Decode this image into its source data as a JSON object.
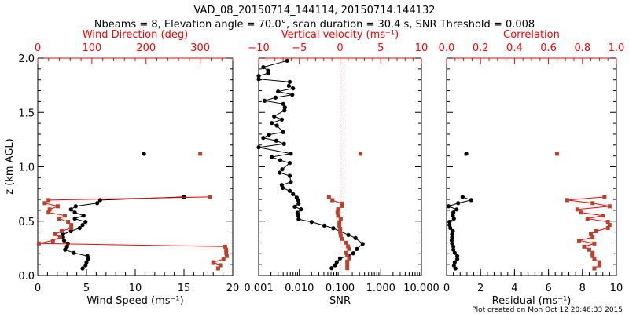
{
  "title": "VAD_08_20150714_144114, 20150714.144132",
  "subtitle": "Nbeams = 8, Elevation angle = 70.0°, scan duration = 30.4 s, SNR Threshold = 0.008",
  "footer": "Plot created on Mon Oct 12 20:46:33 2015",
  "colors": {
    "series_black": "#000000",
    "series_red_line": "#ff0000",
    "series_red_marker": "#b5432f",
    "axis_red": "#ff0000"
  },
  "chart_data": [
    {
      "type": "line",
      "ylabel": "z (km AGL)",
      "ylim": [
        0,
        2
      ],
      "yticks": [
        "0.0",
        "0.5",
        "1.0",
        "1.5",
        "2.0"
      ],
      "xlabel": "Wind Speed (ms⁻¹)",
      "xlim": [
        0,
        20
      ],
      "xticks": [
        "0",
        "5",
        "10",
        "15",
        "20"
      ],
      "top_xlabel": "Wind Direction (deg)",
      "top_xlim": [
        0,
        360
      ],
      "top_xticks": [
        "0",
        "100",
        "200",
        "300"
      ],
      "series": [
        {
          "name": "Wind Speed",
          "axis": "bottom",
          "color": "black",
          "z": [
            0.065,
            0.094,
            0.122,
            0.151,
            0.179,
            0.208,
            0.237,
            0.265,
            0.294,
            0.322,
            0.351,
            0.38,
            0.408,
            0.437,
            0.465,
            0.494,
            0.523,
            0.551,
            0.58,
            0.608,
            0.637,
            0.666,
            0.694,
            0.723
          ],
          "values": [
            4.6,
            4.9,
            5.0,
            5.2,
            5.1,
            3.7,
            2.8,
            3.0,
            3.1,
            2.7,
            2.6,
            2.6,
            3.4,
            4.3,
            4.6,
            4.9,
            3.8,
            4.7,
            3.8,
            3.4,
            3.9,
            6.1,
            6.4,
            15.0
          ],
          "isolated": {
            "z": 1.12,
            "value": 10.9
          }
        },
        {
          "name": "Wind Direction",
          "axis": "top",
          "color": "red",
          "z": [
            0.065,
            0.094,
            0.122,
            0.151,
            0.179,
            0.208,
            0.237,
            0.265,
            0.294,
            0.322,
            0.351,
            0.38,
            0.408,
            0.437,
            0.465,
            0.494,
            0.523,
            0.551,
            0.58,
            0.608,
            0.637,
            0.666,
            0.694,
            0.723
          ],
          "values": [
            333,
            337,
            324,
            343,
            349,
            348,
            348,
            346,
            2,
            28,
            41,
            32,
            44,
            62,
            62,
            56,
            40,
            50,
            20,
            22,
            37,
            13,
            20,
            318
          ],
          "isolated": {
            "z": 1.12,
            "value": 300
          }
        }
      ]
    },
    {
      "type": "line",
      "ylim": [
        0,
        2
      ],
      "xlabel": "SNR",
      "xscale": "log",
      "xlim": [
        0.001,
        10
      ],
      "xticks": [
        "0.001",
        "0.010",
        "0.100",
        "1.000",
        "10.000"
      ],
      "top_xlabel": "Vertical velocity (ms⁻¹)",
      "top_xlim": [
        -10,
        10
      ],
      "top_xticks": [
        "−10",
        "−5",
        "0",
        "5",
        "10"
      ],
      "reference_line": {
        "axis": "top",
        "value": 0,
        "style": "dotted"
      },
      "series": [
        {
          "name": "SNR",
          "axis": "bottom",
          "color": "black",
          "z": [
            1.976,
            1.916,
            1.884,
            1.861,
            1.836,
            1.807,
            1.781,
            1.745,
            1.721,
            1.692,
            1.663,
            1.637,
            1.608,
            1.579,
            1.547,
            1.518,
            1.464,
            1.435,
            1.403,
            1.379,
            1.319,
            1.295,
            1.266,
            1.24,
            1.211,
            1.179,
            1.121,
            1.09,
            1.061,
            1.035,
            0.977,
            0.946,
            0.917,
            0.861,
            0.832,
            0.806,
            0.778,
            0.749,
            0.717,
            0.693,
            0.662,
            0.633,
            0.609,
            0.578,
            0.549,
            0.518,
            0.493,
            0.46,
            0.435,
            0.373,
            0.344,
            0.291,
            0.243,
            0.204,
            0.181,
            0.157,
            0.123,
            0.094,
            0.067
          ],
          "values": [
            0.005,
            0.0013,
            0.0017,
            0.0017,
            0.001,
            0.001,
            0.0058,
            0.0055,
            0.007,
            0.003,
            0.0067,
            0.0026,
            0.0014,
            0.004,
            0.0044,
            0.0043,
            0.0024,
            0.0037,
            0.0021,
            0.0028,
            0.004,
            0.0018,
            0.0013,
            0.0027,
            0.0042,
            0.001,
            0.0062,
            0.0021,
            0.0034,
            0.0058,
            0.0038,
            0.0033,
            0.0058,
            0.0062,
            0.0037,
            0.0039,
            0.0058,
            0.007,
            0.0086,
            0.0093,
            0.0096,
            0.0077,
            0.011,
            0.009,
            0.0094,
            0.0096,
            0.02,
            0.041,
            0.068,
            0.16,
            0.24,
            0.36,
            0.26,
            0.21,
            0.16,
            0.1,
            0.083,
            0.075,
            0.062
          ]
        },
        {
          "name": "Vertical velocity",
          "axis": "top",
          "color": "red",
          "z": [
            0.722,
            0.693,
            0.662,
            0.64,
            0.609,
            0.58,
            0.549,
            0.518,
            0.489,
            0.46,
            0.428,
            0.399,
            0.368,
            0.337,
            0.301,
            0.267,
            0.243,
            0.208,
            0.183,
            0.157,
            0.128,
            0.096,
            0.067
          ],
          "values": [
            -1.37,
            -0.95,
            0.24,
            0.24,
            -0.24,
            -0.31,
            -0.24,
            0.08,
            -0.08,
            -0.08,
            0.02,
            0.02,
            0.08,
            0.24,
            0.72,
            0.98,
            1.11,
            0.72,
            0.89,
            1.11,
            0.89,
            0.89,
            0.89
          ],
          "isolated": {
            "z": 1.12,
            "value": 2.5
          }
        }
      ]
    },
    {
      "type": "line",
      "ylim": [
        0,
        2
      ],
      "xlabel": "Residual (ms⁻¹)",
      "xlim": [
        0,
        10
      ],
      "xticks": [
        "0",
        "2",
        "4",
        "6",
        "8",
        "10"
      ],
      "top_xlabel": "Correlation",
      "top_xlim": [
        0,
        1
      ],
      "top_xticks": [
        "0.0",
        "0.2",
        "0.4",
        "0.6",
        "0.8",
        "1.0"
      ],
      "series": [
        {
          "name": "Residual",
          "axis": "bottom",
          "color": "black",
          "z": [
            0.065,
            0.094,
            0.122,
            0.151,
            0.179,
            0.208,
            0.237,
            0.265,
            0.294,
            0.322,
            0.351,
            0.38,
            0.408,
            0.437,
            0.465,
            0.494,
            0.523,
            0.551,
            0.58,
            0.608,
            0.637,
            0.666,
            0.694,
            0.723
          ],
          "values": [
            0.52,
            0.43,
            0.48,
            0.63,
            0.63,
            0.48,
            0.4,
            0.4,
            0.32,
            0.3,
            0.32,
            0.32,
            0.37,
            0.22,
            0.17,
            0.17,
            0.43,
            0.37,
            0.4,
            0.59,
            0.12,
            0.68,
            1.45,
            0.94
          ],
          "isolated": {
            "z": 1.12,
            "value": 1.16
          }
        },
        {
          "name": "Correlation",
          "axis": "top",
          "color": "red",
          "z": [
            0.065,
            0.094,
            0.122,
            0.151,
            0.179,
            0.208,
            0.237,
            0.265,
            0.294,
            0.322,
            0.351,
            0.38,
            0.408,
            0.437,
            0.465,
            0.494,
            0.523,
            0.551,
            0.58,
            0.608,
            0.637,
            0.666,
            0.694,
            0.723
          ],
          "values": [
            0.87,
            0.9,
            0.9,
            0.87,
            0.86,
            0.86,
            0.84,
            0.81,
            0.87,
            0.78,
            0.86,
            0.85,
            0.88,
            0.95,
            0.96,
            0.95,
            0.83,
            0.92,
            0.79,
            0.77,
            0.96,
            0.86,
            0.71,
            0.93
          ],
          "isolated": {
            "z": 1.12,
            "value": 0.65
          }
        }
      ]
    }
  ]
}
